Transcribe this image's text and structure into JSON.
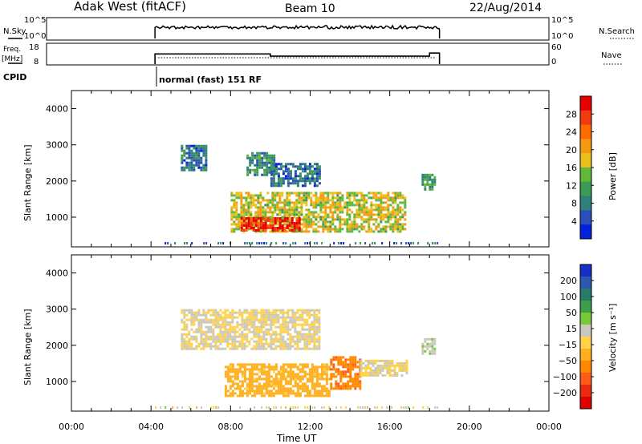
{
  "header": {
    "station": "Adak West (fitACF)",
    "beam": "Beam 10",
    "date": "22/Aug/2014"
  },
  "nsky_panel": {
    "label": "N.Sky",
    "ytick_top": "10^5",
    "ytick_bottom": "10^0",
    "right_label": "N.Search",
    "right_tick_top": "10^5",
    "right_tick_bottom": "10^0"
  },
  "freq_panel": {
    "label_line1": "Freq.",
    "label_line2": "[MHz]",
    "ytick_top": "18",
    "ytick_bottom": "8",
    "right_label": "Nave",
    "right_tick_top": "60",
    "right_tick_bottom": "0"
  },
  "cpid": {
    "label": "CPID",
    "mode": "normal (fast) 151 RF"
  },
  "power_panel": {
    "ylabel": "Slant Range [km]",
    "yticks": [
      "1000",
      "2000",
      "3000",
      "4000"
    ],
    "colorbar_label": "Power [dB]",
    "colorbar_ticks": [
      "4",
      "8",
      "12",
      "16",
      "20",
      "24",
      "28"
    ],
    "colorbar_colors": [
      "#0022dd",
      "#2a4fb8",
      "#2f7f7a",
      "#3c9a55",
      "#5fb83a",
      "#e8c21a",
      "#f39a12",
      "#ff6a00",
      "#f23a10",
      "#e80000"
    ]
  },
  "velocity_panel": {
    "ylabel": "Slant Range [km]",
    "yticks": [
      "1000",
      "2000",
      "3000",
      "4000"
    ],
    "colorbar_label": "Velocity [m s⁻¹]",
    "colorbar_ticks": [
      "200",
      "100",
      "50",
      "15",
      "−15",
      "−50",
      "−100",
      "−200"
    ],
    "colorbar_colors": [
      "#1530c8",
      "#2d58b0",
      "#2a7a6a",
      "#3f9e4c",
      "#78c83a",
      "#c8c8be",
      "#ffd24a",
      "#ffb020",
      "#ff8800",
      "#ff5a1a",
      "#e82a10",
      "#e00000"
    ]
  },
  "xaxis": {
    "label": "Time UT",
    "ticks": [
      "00:00",
      "04:00",
      "08:00",
      "12:00",
      "16:00",
      "20:00",
      "00:00"
    ]
  },
  "chart_data": {
    "type": "heatmap",
    "title": "Adak West (fitACF)  Beam 10  22/Aug/2014",
    "xlabel": "Time UT",
    "ylabel": "Slant Range [km]",
    "xlim_hours": [
      0,
      24
    ],
    "ylim_km": [
      180,
      4500
    ],
    "operation_start_hour": 4.2,
    "operation_end_hour": 18.5,
    "frequency_mhz": [
      {
        "from": 4.2,
        "to": 10.0,
        "value": 13.5
      },
      {
        "from": 10.0,
        "to": 18.0,
        "value": 12.3
      },
      {
        "from": 18.0,
        "to": 18.5,
        "value": 14.0
      }
    ],
    "power_regions": [
      {
        "t0": 8.0,
        "t1": 16.8,
        "r0": 600,
        "r1": 1700,
        "power_db": 16
      },
      {
        "t0": 8.5,
        "t1": 11.5,
        "r0": 650,
        "r1": 1000,
        "power_db": 28
      },
      {
        "t0": 5.5,
        "t1": 6.8,
        "r0": 2300,
        "r1": 3000,
        "power_db": 6
      },
      {
        "t0": 8.8,
        "t1": 10.2,
        "r0": 2200,
        "r1": 2800,
        "power_db": 8
      },
      {
        "t0": 10.0,
        "t1": 12.5,
        "r0": 1900,
        "r1": 2500,
        "power_db": 6
      },
      {
        "t0": 17.6,
        "t1": 18.3,
        "r0": 1800,
        "r1": 2200,
        "power_db": 10
      }
    ],
    "velocity_regions": [
      {
        "t0": 7.7,
        "t1": 13.0,
        "r0": 600,
        "r1": 1500,
        "velocity": -50
      },
      {
        "t0": 13.0,
        "t1": 14.5,
        "r0": 800,
        "r1": 1700,
        "velocity": -100
      },
      {
        "t0": 14.5,
        "t1": 16.8,
        "r0": 1200,
        "r1": 1600,
        "velocity": 0
      },
      {
        "t0": 5.5,
        "t1": 12.5,
        "r0": 1900,
        "r1": 3000,
        "velocity": 0
      },
      {
        "t0": 17.6,
        "t1": 18.3,
        "r0": 1800,
        "r1": 2200,
        "velocity": 30
      }
    ]
  }
}
